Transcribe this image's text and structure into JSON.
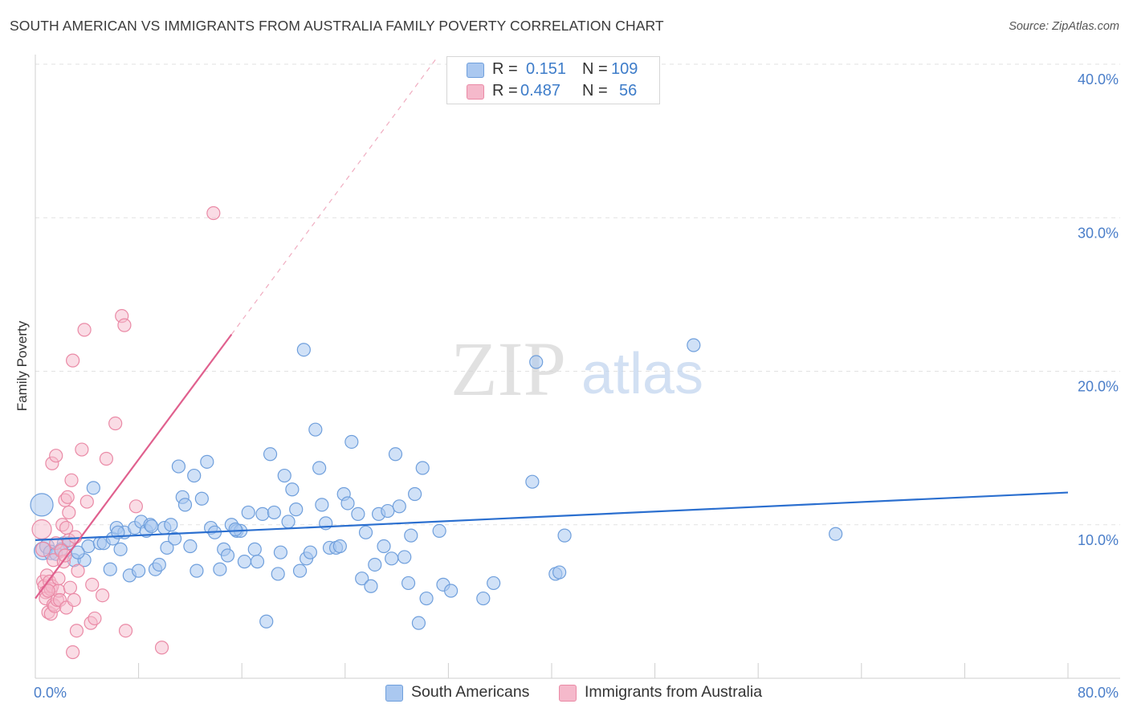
{
  "header": {
    "title": "SOUTH AMERICAN VS IMMIGRANTS FROM AUSTRALIA FAMILY POVERTY CORRELATION CHART",
    "source": "Source: ZipAtlas.com"
  },
  "watermark": {
    "zip": "ZIP",
    "atlas": "atlas"
  },
  "stats": {
    "south": {
      "r_label": "R =",
      "r_value": "0.151",
      "n_label": "N =",
      "n_value": "109"
    },
    "aus": {
      "r_label": "R =",
      "r_value": "0.487",
      "n_label": "N =",
      "n_value": "56"
    }
  },
  "legend": {
    "south_label": "South Americans",
    "aus_label": "Immigrants from Australia"
  },
  "colors": {
    "blue_fill": "#aac8f0",
    "blue_stroke": "#6f9fdc",
    "blue_line": "#2b6fcf",
    "pink_fill": "#f5b9cb",
    "pink_stroke": "#ea8aa6",
    "pink_line": "#e0608e",
    "axis_text": "#4a7ec9",
    "grid": "#e2e2e2"
  },
  "chart_data": {
    "type": "scatter",
    "title": "SOUTH AMERICAN VS IMMIGRANTS FROM AUSTRALIA FAMILY POVERTY CORRELATION CHART",
    "xlabel": "",
    "ylabel": "Family Poverty",
    "xlim": [
      0,
      80
    ],
    "ylim": [
      0,
      40
    ],
    "x_tick_labels": [
      {
        "value": 0,
        "label": "0.0%"
      },
      {
        "value": 80,
        "label": "80.0%"
      }
    ],
    "y_tick_labels": [
      {
        "value": 10,
        "label": "10.0%"
      },
      {
        "value": 20,
        "label": "20.0%"
      },
      {
        "value": 30,
        "label": "30.0%"
      },
      {
        "value": 40,
        "label": "40.0%"
      }
    ],
    "series": [
      {
        "name": "South Americans",
        "r": 0.151,
        "n": 109,
        "trend": {
          "x0": 0,
          "y0": 9.0,
          "x1": 80,
          "y1": 12.1
        },
        "points": [
          [
            0.5,
            11.3,
            14
          ],
          [
            0.6,
            8.3,
            11
          ],
          [
            0.9,
            8.6,
            9
          ],
          [
            1.2,
            8.2,
            9
          ],
          [
            1.6,
            8.1,
            8
          ],
          [
            2.2,
            8.8,
            8
          ],
          [
            2.6,
            8.8,
            8
          ],
          [
            3.0,
            7.7,
            8
          ],
          [
            3.8,
            7.7,
            8
          ],
          [
            4.1,
            8.6,
            8
          ],
          [
            4.5,
            12.4,
            8
          ],
          [
            5.0,
            8.8,
            8
          ],
          [
            5.3,
            8.8,
            8
          ],
          [
            5.8,
            7.1,
            8
          ],
          [
            6.0,
            9.1,
            8
          ],
          [
            6.3,
            9.8,
            8
          ],
          [
            6.6,
            8.4,
            8
          ],
          [
            6.9,
            9.5,
            8
          ],
          [
            7.3,
            6.7,
            8
          ],
          [
            7.7,
            9.8,
            8
          ],
          [
            8.0,
            7.0,
            8
          ],
          [
            8.2,
            10.2,
            8
          ],
          [
            8.6,
            9.6,
            8
          ],
          [
            8.9,
            10.0,
            8
          ],
          [
            9.3,
            7.1,
            8
          ],
          [
            9.6,
            7.4,
            8
          ],
          [
            10.0,
            9.8,
            8
          ],
          [
            10.2,
            8.5,
            8
          ],
          [
            10.5,
            10.0,
            8
          ],
          [
            10.8,
            9.1,
            8
          ],
          [
            11.1,
            13.8,
            8
          ],
          [
            11.4,
            11.8,
            8
          ],
          [
            11.6,
            11.3,
            8
          ],
          [
            12.0,
            8.6,
            8
          ],
          [
            12.3,
            13.2,
            8
          ],
          [
            12.5,
            7.0,
            8
          ],
          [
            12.9,
            11.7,
            8
          ],
          [
            13.3,
            14.1,
            8
          ],
          [
            13.6,
            9.8,
            8
          ],
          [
            13.9,
            9.5,
            8
          ],
          [
            14.3,
            7.1,
            8
          ],
          [
            14.6,
            8.4,
            8
          ],
          [
            14.9,
            8.0,
            8
          ],
          [
            15.2,
            10.0,
            8
          ],
          [
            15.6,
            9.6,
            8
          ],
          [
            15.9,
            9.6,
            8
          ],
          [
            16.2,
            7.6,
            8
          ],
          [
            16.5,
            10.8,
            8
          ],
          [
            17.0,
            8.4,
            8
          ],
          [
            17.2,
            7.6,
            8
          ],
          [
            17.6,
            10.7,
            8
          ],
          [
            17.9,
            3.7,
            8
          ],
          [
            18.2,
            14.6,
            8
          ],
          [
            18.5,
            10.8,
            8
          ],
          [
            18.8,
            6.8,
            8
          ],
          [
            19.0,
            8.2,
            8
          ],
          [
            19.3,
            13.2,
            8
          ],
          [
            19.6,
            10.2,
            8
          ],
          [
            19.9,
            12.3,
            8
          ],
          [
            20.2,
            11.0,
            8
          ],
          [
            20.5,
            7.0,
            8
          ],
          [
            20.8,
            21.4,
            8
          ],
          [
            21.0,
            7.8,
            8
          ],
          [
            21.3,
            8.2,
            8
          ],
          [
            21.7,
            16.2,
            8
          ],
          [
            22.0,
            13.7,
            8
          ],
          [
            22.2,
            11.3,
            8
          ],
          [
            22.5,
            10.1,
            8
          ],
          [
            22.8,
            8.5,
            8
          ],
          [
            23.3,
            8.5,
            8
          ],
          [
            23.6,
            8.6,
            8
          ],
          [
            23.9,
            12.0,
            8
          ],
          [
            24.2,
            11.4,
            8
          ],
          [
            24.5,
            15.4,
            8
          ],
          [
            25.0,
            10.7,
            8
          ],
          [
            25.3,
            6.5,
            8
          ],
          [
            25.6,
            9.5,
            8
          ],
          [
            26.0,
            6.0,
            8
          ],
          [
            26.3,
            7.4,
            8
          ],
          [
            26.6,
            10.7,
            8
          ],
          [
            27.0,
            8.6,
            8
          ],
          [
            27.3,
            10.9,
            8
          ],
          [
            27.6,
            7.8,
            8
          ],
          [
            27.9,
            14.6,
            8
          ],
          [
            28.2,
            11.2,
            8
          ],
          [
            28.6,
            7.9,
            8
          ],
          [
            28.9,
            6.2,
            8
          ],
          [
            29.1,
            9.3,
            8
          ],
          [
            29.4,
            12.0,
            8
          ],
          [
            29.7,
            3.6,
            8
          ],
          [
            30.0,
            13.7,
            8
          ],
          [
            30.3,
            5.2,
            8
          ],
          [
            31.3,
            9.6,
            8
          ],
          [
            31.6,
            6.1,
            8
          ],
          [
            32.2,
            5.7,
            8
          ],
          [
            34.7,
            5.2,
            8
          ],
          [
            35.5,
            6.2,
            8
          ],
          [
            38.5,
            12.8,
            8
          ],
          [
            38.8,
            20.6,
            8
          ],
          [
            40.3,
            6.8,
            8
          ],
          [
            40.6,
            6.9,
            8
          ],
          [
            41.0,
            9.3,
            8
          ],
          [
            51.0,
            21.7,
            8
          ],
          [
            62.0,
            9.4,
            8
          ],
          [
            2.0,
            8.4,
            8
          ],
          [
            3.3,
            8.2,
            8
          ],
          [
            6.4,
            9.5,
            8
          ],
          [
            9.0,
            9.9,
            8
          ],
          [
            15.5,
            9.7,
            8
          ]
        ]
      },
      {
        "name": "Immigrants from Australia",
        "r": 0.487,
        "n": 56,
        "trend": {
          "x0": 0,
          "y0": 5.2,
          "x1": 15.2,
          "y1": 22.4
        },
        "trend_extension": {
          "x0": 15.2,
          "y0": 22.4,
          "x1": 31,
          "y1": 40.3
        },
        "points": [
          [
            0.5,
            9.7,
            12
          ],
          [
            0.6,
            8.4,
            9
          ],
          [
            0.6,
            6.3,
            8
          ],
          [
            0.7,
            6.0,
            8
          ],
          [
            0.8,
            5.6,
            8
          ],
          [
            0.8,
            5.2,
            8
          ],
          [
            0.9,
            6.7,
            8
          ],
          [
            1.0,
            4.3,
            8
          ],
          [
            1.1,
            6.3,
            8
          ],
          [
            1.2,
            5.8,
            8
          ],
          [
            1.2,
            4.2,
            8
          ],
          [
            1.3,
            14.0,
            8
          ],
          [
            1.3,
            6.0,
            8
          ],
          [
            1.4,
            7.7,
            8
          ],
          [
            1.4,
            4.8,
            8
          ],
          [
            1.5,
            4.7,
            8
          ],
          [
            1.6,
            8.8,
            8
          ],
          [
            1.6,
            14.5,
            8
          ],
          [
            1.7,
            5.1,
            8
          ],
          [
            1.8,
            5.7,
            8
          ],
          [
            1.8,
            6.5,
            8
          ],
          [
            1.9,
            5.1,
            8
          ],
          [
            2.0,
            8.3,
            8
          ],
          [
            2.1,
            10.0,
            8
          ],
          [
            2.2,
            7.6,
            8
          ],
          [
            2.3,
            8.0,
            8
          ],
          [
            2.3,
            11.6,
            8
          ],
          [
            2.4,
            4.6,
            8
          ],
          [
            2.5,
            11.8,
            8
          ],
          [
            2.6,
            10.8,
            8
          ],
          [
            2.6,
            9.0,
            8
          ],
          [
            2.7,
            5.9,
            8
          ],
          [
            2.8,
            12.9,
            8
          ],
          [
            2.9,
            20.7,
            8
          ],
          [
            2.9,
            1.7,
            8
          ],
          [
            3.0,
            5.1,
            8
          ],
          [
            3.1,
            9.2,
            8
          ],
          [
            3.2,
            3.1,
            8
          ],
          [
            3.3,
            7.0,
            8
          ],
          [
            3.6,
            14.9,
            8
          ],
          [
            3.8,
            22.7,
            8
          ],
          [
            4.0,
            11.5,
            8
          ],
          [
            4.3,
            3.6,
            8
          ],
          [
            4.4,
            6.1,
            8
          ],
          [
            4.6,
            3.9,
            8
          ],
          [
            5.2,
            5.4,
            8
          ],
          [
            5.5,
            14.3,
            8
          ],
          [
            6.2,
            16.6,
            8
          ],
          [
            6.7,
            23.6,
            8
          ],
          [
            6.9,
            23.0,
            8
          ],
          [
            7.0,
            3.1,
            8
          ],
          [
            7.8,
            11.2,
            8
          ],
          [
            9.8,
            2.0,
            8
          ],
          [
            13.8,
            30.3,
            8
          ],
          [
            1.0,
            5.7,
            8
          ],
          [
            2.4,
            9.8,
            8
          ]
        ]
      }
    ]
  }
}
